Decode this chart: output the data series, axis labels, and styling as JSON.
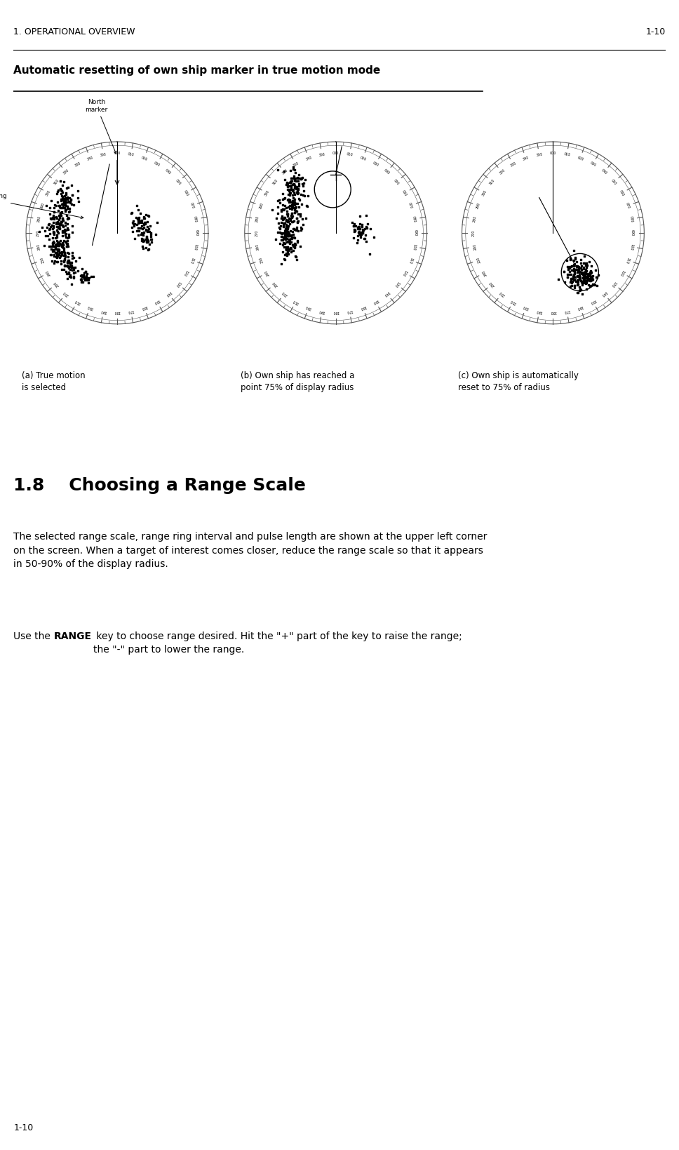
{
  "page_header": "1. OPERATIONAL OVERVIEW",
  "page_number": "1-10",
  "section_title": "Automatic resetting of own ship marker in true motion mode",
  "section_number": "1.8",
  "section_heading": "Choosing a Range Scale",
  "para1": "The selected range scale, range ring interval and pulse length are shown at the upper left corner\non the screen. When a target of interest comes closer, reduce the range scale so that it appears\nin 50-90% of the display radius.",
  "para2_prefix": "Use the ",
  "para2_bold": "RANGE",
  "para2_suffix": " key to choose range desired. Hit the \"+\" part of the key to raise the range;\nthe \"-\" part to lower the range.",
  "caption_a": "(a) True motion\nis selected",
  "caption_b": "(b) Own ship has reached a\npoint 75% of display radius",
  "caption_c": "(c) Own ship is automatically\nreset to 75% of radius",
  "label_heading": "Heading\nline",
  "label_north": "North\nmarker",
  "bg_color": "#ffffff",
  "text_color": "#000000",
  "radar_color": "#555555",
  "scatter_color": "#000000"
}
